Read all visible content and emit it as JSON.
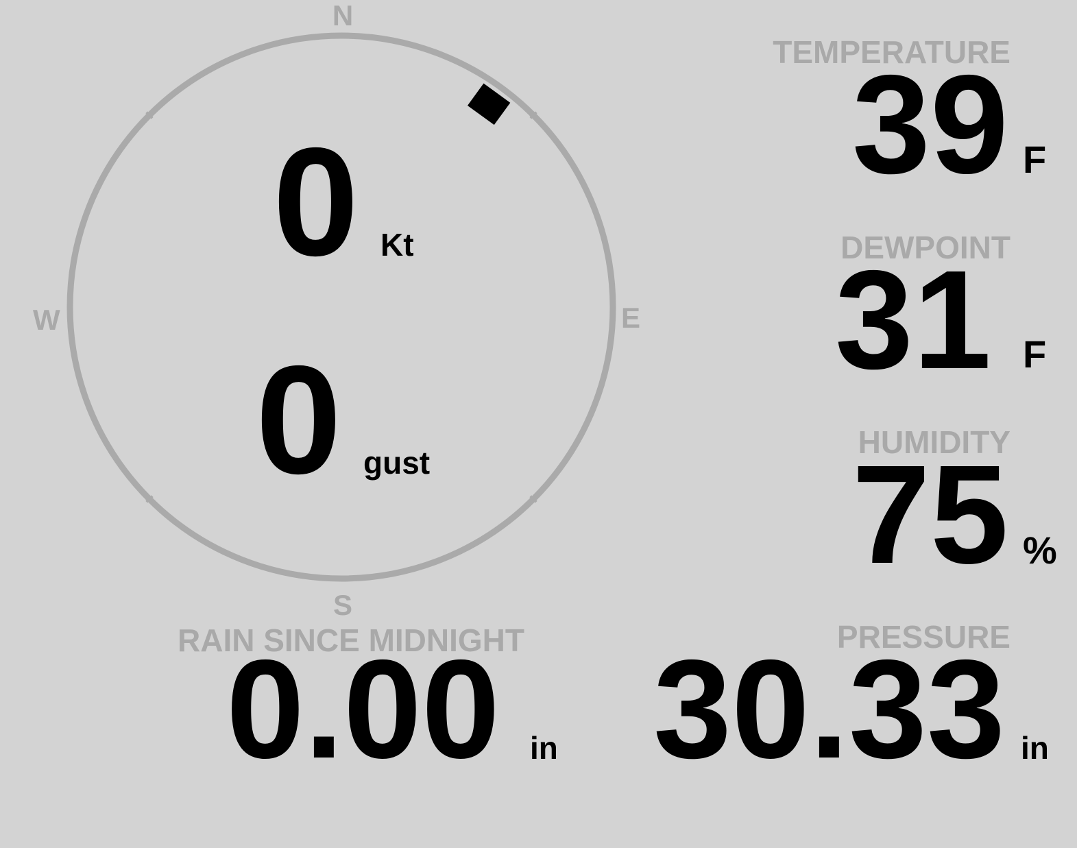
{
  "compass": {
    "north": "N",
    "east": "E",
    "south": "S",
    "west": "W",
    "wind_direction_deg": 36,
    "ring_color": "#aaaaaa",
    "marker_color": "#000000"
  },
  "wind": {
    "speed": "0",
    "speed_unit": "Kt",
    "gust": "0",
    "gust_unit": "gust"
  },
  "temperature": {
    "label": "TEMPERATURE",
    "value": "39",
    "unit": "F"
  },
  "dewpoint": {
    "label": "DEWPOINT",
    "value": "31",
    "unit": "F"
  },
  "humidity": {
    "label": "HUMIDITY",
    "value": "75",
    "unit": "%"
  },
  "rain": {
    "label": "RAIN SINCE MIDNIGHT",
    "value": "0.00",
    "unit": "in"
  },
  "pressure": {
    "label": "PRESSURE",
    "value": "30.33",
    "unit": "in"
  },
  "colors": {
    "background": "#d3d3d3",
    "label": "#a9a9a9",
    "value": "#000000"
  }
}
